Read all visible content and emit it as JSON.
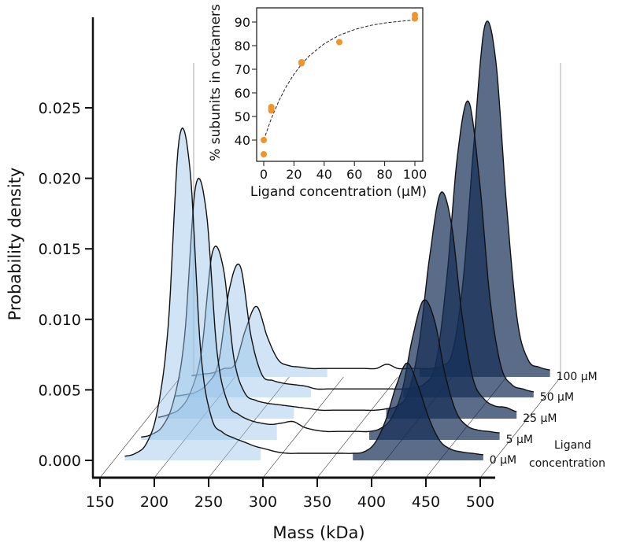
{
  "chart_data": [
    {
      "type": "area",
      "subtype": "ridgeline-3d",
      "xlabel": "Mass (kDa)",
      "ylabel": "Probability density",
      "xlim": [
        150,
        500
      ],
      "ylim": [
        0,
        0.025
      ],
      "xticks": [
        "150",
        "200",
        "250",
        "300",
        "350",
        "400",
        "450",
        "500"
      ],
      "yticks": [
        "0.000",
        "0.005",
        "0.010",
        "0.015",
        "0.020",
        "0.025"
      ],
      "depth_label": [
        "Ligand",
        "concentration"
      ],
      "grid": true,
      "colors": {
        "low_mass_fill": "#c6ddf1",
        "high_mass_fill": "#5a6c88",
        "line": "#111111"
      },
      "x": [
        160,
        170,
        180,
        190,
        200,
        210,
        220,
        230,
        240,
        250,
        260,
        270,
        280,
        290,
        300,
        310,
        320,
        330,
        340,
        350,
        360,
        370,
        380,
        390,
        400,
        410,
        420,
        430,
        440,
        450,
        460,
        470,
        480,
        490
      ],
      "series": [
        {
          "name": "0 μM",
          "values": [
            0.0003,
            0.0005,
            0.0012,
            0.0035,
            0.0095,
            0.0227,
            0.0207,
            0.0077,
            0.003,
            0.002,
            0.0016,
            0.0013,
            0.001,
            0.0008,
            0.0006,
            0.0005,
            0.0005,
            0.0005,
            0.0005,
            0.0005,
            0.0005,
            0.0005,
            0.0006,
            0.0012,
            0.0028,
            0.0053,
            0.0069,
            0.0053,
            0.003,
            0.0014,
            0.0008,
            0.0006,
            0.0005,
            0.0004
          ]
        },
        {
          "name": "5 μM",
          "values": [
            0.0002,
            0.0004,
            0.001,
            0.0028,
            0.0073,
            0.0179,
            0.0162,
            0.0062,
            0.0026,
            0.0018,
            0.0014,
            0.0012,
            0.0011,
            0.0012,
            0.0013,
            0.0009,
            0.0007,
            0.0006,
            0.0006,
            0.0006,
            0.0006,
            0.0006,
            0.0008,
            0.0015,
            0.0034,
            0.0073,
            0.0099,
            0.0085,
            0.0046,
            0.002,
            0.001,
            0.0007,
            0.0006,
            0.0005
          ]
        },
        {
          "name": "25 μM",
          "values": [
            0.0001,
            0.0003,
            0.0007,
            0.0019,
            0.0048,
            0.0118,
            0.0107,
            0.0042,
            0.0018,
            0.0013,
            0.0011,
            0.001,
            0.0009,
            0.0008,
            0.0007,
            0.0006,
            0.0006,
            0.0006,
            0.0006,
            0.0006,
            0.0006,
            0.0007,
            0.0009,
            0.0018,
            0.0052,
            0.0115,
            0.016,
            0.0138,
            0.0072,
            0.0028,
            0.0014,
            0.0009,
            0.0008,
            0.0005
          ]
        },
        {
          "name": "50 μM",
          "values": [
            0.0001,
            0.0002,
            0.0004,
            0.001,
            0.0025,
            0.0077,
            0.0093,
            0.0043,
            0.0016,
            0.0012,
            0.001,
            0.0009,
            0.0008,
            0.0006,
            0.0006,
            0.0006,
            0.0006,
            0.0006,
            0.0006,
            0.0006,
            0.0006,
            0.0006,
            0.0007,
            0.001,
            0.0024,
            0.0084,
            0.0172,
            0.021,
            0.0155,
            0.0069,
            0.0022,
            0.0009,
            0.0006,
            0.0004
          ]
        },
        {
          "name": "100 μM",
          "values": [
            0.0001,
            0.0002,
            0.0003,
            0.0006,
            0.0009,
            0.0034,
            0.005,
            0.0028,
            0.0012,
            0.0008,
            0.0007,
            0.0006,
            0.0006,
            0.0006,
            0.0006,
            0.0006,
            0.0006,
            0.0006,
            0.0009,
            0.0006,
            0.0006,
            0.0006,
            0.0006,
            0.0008,
            0.0017,
            0.0068,
            0.0166,
            0.0249,
            0.0225,
            0.0122,
            0.004,
            0.0012,
            0.0007,
            0.0005
          ]
        }
      ]
    },
    {
      "type": "scatter",
      "xlabel": "Ligand concentration (μM)",
      "ylabel": "% subunits in octamers",
      "xlim": [
        -3,
        103
      ],
      "ylim": [
        32,
        96
      ],
      "xticks": [
        "0",
        "20",
        "40",
        "60",
        "80",
        "100"
      ],
      "yticks": [
        "40",
        "50",
        "60",
        "70",
        "80",
        "90"
      ],
      "point_color": "#f0952a",
      "points": [
        [
          0,
          40
        ],
        [
          0,
          34
        ],
        [
          5,
          54
        ],
        [
          5,
          53
        ],
        [
          5,
          52.5
        ],
        [
          25,
          73
        ],
        [
          25,
          72.5
        ],
        [
          50,
          81.5
        ],
        [
          100,
          93
        ],
        [
          100,
          91.5
        ]
      ],
      "fit_curve": {
        "style": "dashed",
        "x": [
          0,
          5,
          10,
          15,
          20,
          25,
          30,
          40,
          50,
          60,
          70,
          80,
          90,
          100
        ],
        "y": [
          40,
          49.1,
          56.6,
          62.8,
          67.9,
          72.1,
          75.6,
          80.8,
          84.4,
          86.8,
          88.5,
          89.6,
          90.3,
          90.9
        ]
      }
    }
  ]
}
